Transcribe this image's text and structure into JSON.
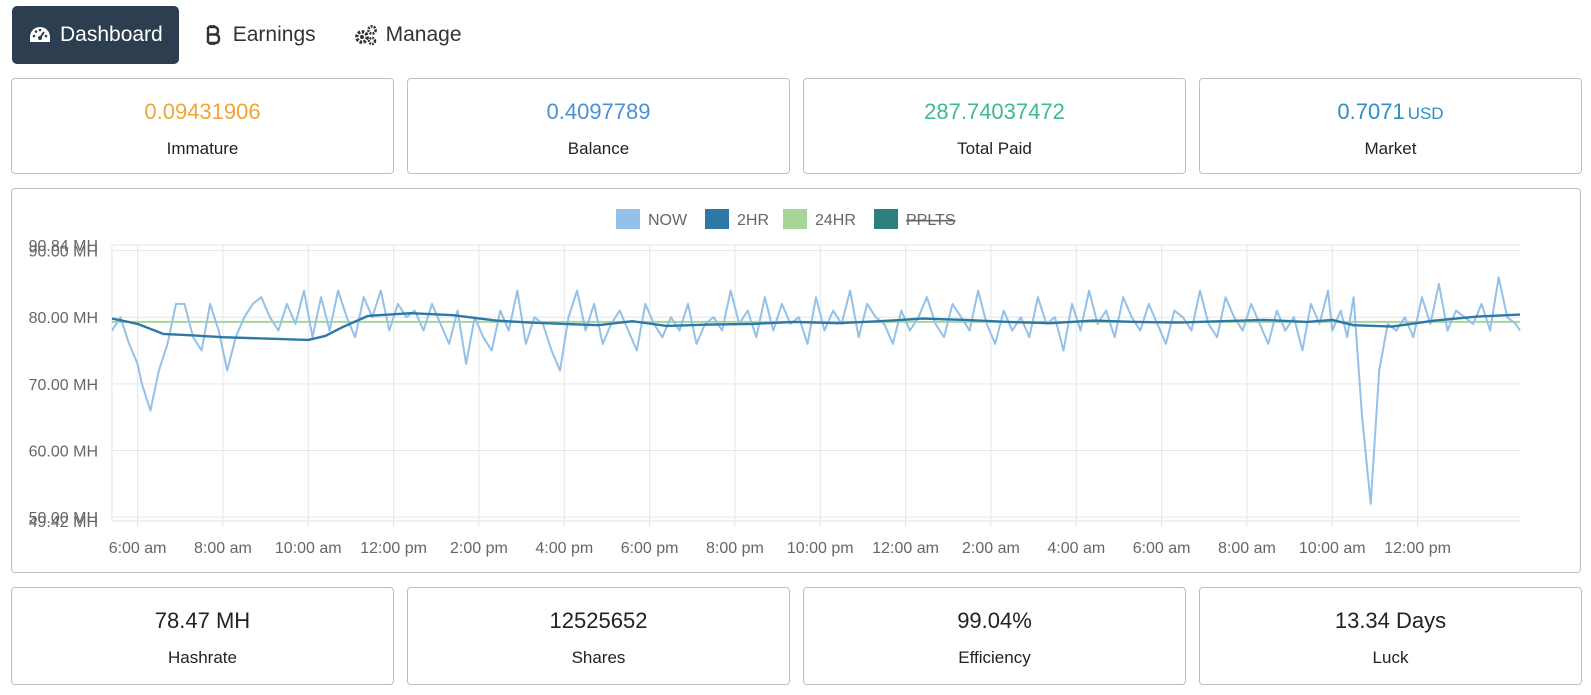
{
  "tabs": [
    {
      "label": "Dashboard",
      "icon": "tachometer-icon",
      "active": true
    },
    {
      "label": "Earnings",
      "icon": "bitcoin-icon",
      "active": false
    },
    {
      "label": "Manage",
      "icon": "gears-icon",
      "active": false
    }
  ],
  "top_stats": [
    {
      "value": "0.09431906",
      "unit": "",
      "label": "Immature",
      "color": "#f0a534"
    },
    {
      "value": "0.4097789",
      "unit": "",
      "label": "Balance",
      "color": "#4a90d9"
    },
    {
      "value": "287.74037472",
      "unit": "",
      "label": "Total Paid",
      "color": "#3fb992"
    },
    {
      "value": "0.7071",
      "unit": "USD",
      "label": "Market",
      "color": "#2d8fc8"
    }
  ],
  "bottom_stats": [
    {
      "value": "78.47 MH",
      "label": "Hashrate"
    },
    {
      "value": "12525652",
      "label": "Shares"
    },
    {
      "value": "99.04%",
      "label": "Efficiency"
    },
    {
      "value": "13.34 Days",
      "label": "Luck"
    }
  ],
  "chart_data": {
    "type": "line",
    "legend_position": "top-center",
    "grid": true,
    "ylim": [
      49.42,
      90.84
    ],
    "y_ticks": [
      "90.84 MH",
      "90.00 MH",
      "80.00 MH",
      "70.00 MH",
      "60.00 MH",
      "50.00 MH",
      "49.42 MH"
    ],
    "y_tick_values": [
      90.84,
      90,
      80,
      70,
      60,
      50,
      49.42
    ],
    "x_ticks": [
      "6:00 am",
      "8:00 am",
      "10:00 am",
      "12:00 pm",
      "2:00 pm",
      "4:00 pm",
      "6:00 pm",
      "8:00 pm",
      "10:00 pm",
      "12:00 am",
      "2:00 am",
      "4:00 am",
      "6:00 am",
      "8:00 am",
      "10:00 am",
      "12:00 pm"
    ],
    "x_tick_hours": [
      6,
      8,
      10,
      12,
      14,
      16,
      18,
      20,
      22,
      24,
      26,
      28,
      30,
      32,
      34,
      36
    ],
    "xlim_hours": [
      5.4,
      38.4
    ],
    "series": [
      {
        "name": "NOW",
        "color": "#94c1e8",
        "strikethrough": false,
        "x": [
          5.4,
          5.6,
          5.8,
          6.0,
          6.1,
          6.3,
          6.5,
          6.7,
          6.9,
          7.1,
          7.3,
          7.5,
          7.7,
          7.9,
          8.1,
          8.3,
          8.5,
          8.7,
          8.9,
          9.1,
          9.3,
          9.5,
          9.7,
          9.9,
          10.1,
          10.3,
          10.5,
          10.7,
          10.9,
          11.1,
          11.3,
          11.5,
          11.7,
          11.9,
          12.1,
          12.3,
          12.5,
          12.7,
          12.9,
          13.1,
          13.3,
          13.5,
          13.7,
          13.9,
          14.1,
          14.3,
          14.5,
          14.7,
          14.9,
          15.1,
          15.3,
          15.5,
          15.7,
          15.9,
          16.1,
          16.3,
          16.5,
          16.7,
          16.9,
          17.1,
          17.3,
          17.5,
          17.7,
          17.9,
          18.1,
          18.3,
          18.5,
          18.7,
          18.9,
          19.1,
          19.3,
          19.5,
          19.7,
          19.9,
          20.1,
          20.3,
          20.5,
          20.7,
          20.9,
          21.1,
          21.3,
          21.5,
          21.7,
          21.9,
          22.1,
          22.3,
          22.5,
          22.7,
          22.9,
          23.1,
          23.3,
          23.5,
          23.7,
          23.9,
          24.1,
          24.3,
          24.5,
          24.7,
          24.9,
          25.1,
          25.3,
          25.5,
          25.7,
          25.9,
          26.1,
          26.3,
          26.5,
          26.7,
          26.9,
          27.1,
          27.3,
          27.5,
          27.7,
          27.9,
          28.1,
          28.3,
          28.5,
          28.7,
          28.9,
          29.1,
          29.3,
          29.5,
          29.7,
          29.9,
          30.1,
          30.3,
          30.5,
          30.7,
          30.9,
          31.1,
          31.3,
          31.5,
          31.7,
          31.9,
          32.1,
          32.3,
          32.5,
          32.7,
          32.9,
          33.1,
          33.3,
          33.5,
          33.7,
          33.9,
          34.0,
          34.2,
          34.35,
          34.5,
          34.7,
          34.9,
          35.1,
          35.3,
          35.5,
          35.7,
          35.9,
          36.1,
          36.3,
          36.5,
          36.7,
          36.9,
          37.1,
          37.3,
          37.5,
          37.7,
          37.9,
          38.1,
          38.3,
          38.4
        ],
        "values": [
          78,
          80,
          76,
          73,
          70,
          66,
          72,
          76,
          82,
          82,
          77,
          75,
          82,
          78,
          72,
          77,
          80,
          82,
          83,
          80,
          78,
          82,
          79,
          84,
          77,
          83,
          78,
          84,
          80,
          77,
          83,
          80,
          84,
          78,
          82,
          80,
          81,
          78,
          82,
          79,
          76,
          81,
          73,
          80,
          77,
          75,
          81,
          78,
          84,
          76,
          80,
          79,
          75,
          72,
          80,
          84,
          78,
          82,
          76,
          79,
          81,
          78,
          75,
          82,
          79,
          77,
          80,
          78,
          82,
          76,
          79,
          80,
          78,
          84,
          79,
          81,
          77,
          83,
          78,
          82,
          79,
          80,
          76,
          83,
          78,
          81,
          79,
          84,
          77,
          82,
          80,
          79,
          76,
          81,
          78,
          80,
          83,
          79,
          77,
          82,
          80,
          78,
          84,
          79,
          76,
          81,
          78,
          80,
          77,
          83,
          79,
          80,
          75,
          82,
          78,
          84,
          79,
          81,
          77,
          83,
          80,
          78,
          82,
          79,
          76,
          81,
          80,
          78,
          84,
          79,
          77,
          83,
          80,
          78,
          82,
          79,
          76,
          81,
          78,
          80,
          75,
          82,
          79,
          84,
          78,
          81,
          77,
          83,
          65,
          52,
          72,
          79,
          78,
          80,
          77,
          83,
          79,
          85,
          78,
          81,
          80,
          79,
          82,
          78,
          86,
          80,
          79,
          78
        ]
      },
      {
        "name": "2HR",
        "color": "#2e78a6",
        "strikethrough": false,
        "x": [
          5.4,
          6.0,
          6.6,
          7.2,
          8.0,
          9.0,
          10.0,
          10.4,
          10.8,
          11.4,
          12.4,
          13.4,
          14.4,
          15.2,
          16.0,
          16.8,
          17.6,
          18.4,
          19.4,
          20.4,
          21.4,
          22.4,
          23.4,
          24.4,
          25.4,
          26.4,
          27.4,
          28.4,
          29.4,
          30.4,
          31.4,
          32.4,
          33.4,
          34.0,
          34.5,
          35.4,
          36.4,
          37.4,
          38.4
        ],
        "values": [
          79.8,
          79,
          77.5,
          77.3,
          77,
          76.8,
          76.6,
          77.2,
          78.5,
          80.2,
          80.6,
          80.3,
          79.5,
          79.2,
          79,
          78.8,
          79.4,
          78.7,
          78.9,
          79,
          79.3,
          79.1,
          79.4,
          79.8,
          79.6,
          79.3,
          79.1,
          79.5,
          79.3,
          79.2,
          79.4,
          79.6,
          79.3,
          79.6,
          78.8,
          78.6,
          79.5,
          80.1,
          80.4
        ]
      },
      {
        "name": "24HR",
        "color": "#a6d59a",
        "strikethrough": false,
        "x": [
          5.4,
          38.4
        ],
        "values": [
          79.3,
          79.3
        ]
      },
      {
        "name": "PPLTS",
        "color": "#2c7f7c",
        "strikethrough": true,
        "x": [],
        "values": []
      }
    ]
  }
}
